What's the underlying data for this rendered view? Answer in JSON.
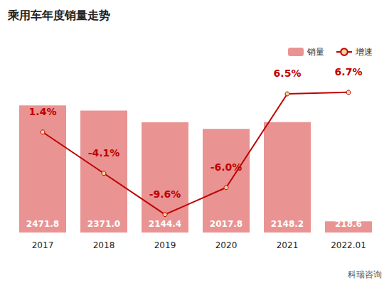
{
  "chart_data": {
    "type": "bar",
    "title": "乘用车年度销量走势",
    "source": "科瑞咨询",
    "categories": [
      "2017",
      "2018",
      "2019",
      "2020",
      "2021",
      "2022.01"
    ],
    "series": [
      {
        "name": "销量",
        "type": "bar",
        "color": "#e99493",
        "values": [
          2471.8,
          2371.0,
          2144.4,
          2017.8,
          2148.2,
          218.6
        ],
        "value_labels": [
          "2471.8",
          "2371.0",
          "2144.4",
          "2017.8",
          "2148.2",
          "218.6"
        ]
      },
      {
        "name": "增速",
        "type": "line",
        "axis": "y2",
        "color": "#c00000",
        "marker": "circle",
        "values": [
          1.4,
          -4.1,
          -9.6,
          -6.0,
          6.5,
          6.7
        ],
        "value_labels": [
          "1.4%",
          "-4.1%",
          "-9.6%",
          "-6.0%",
          "6.5%",
          "6.7%"
        ]
      }
    ],
    "ylim": [
      0,
      3500
    ],
    "yticks": [
      0,
      500,
      1000,
      1500,
      2000,
      2500,
      3000,
      3500
    ],
    "y2lim": [
      -12,
      12
    ],
    "y2ticks": [
      -12,
      -8,
      -4,
      0,
      4,
      8,
      12
    ],
    "grid": false,
    "legend": "top-right",
    "data_labels": true,
    "tick_labels": "x"
  }
}
